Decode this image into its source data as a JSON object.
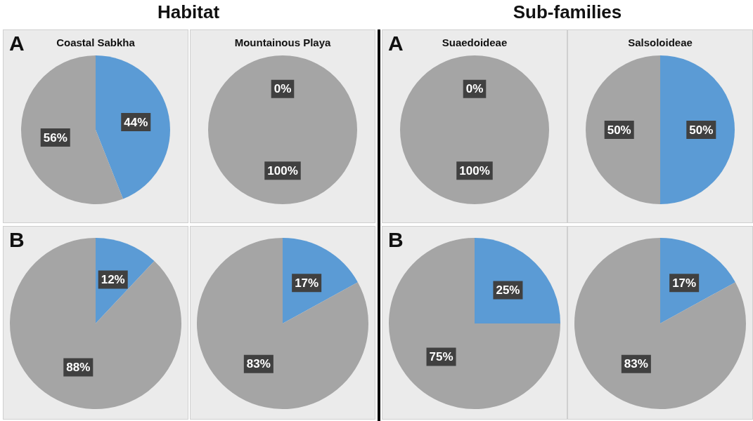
{
  "chart_data": [
    {
      "type": "pie",
      "title": "Coastal Sabkha",
      "annotations": [
        "Habitat",
        "A"
      ],
      "categories": [
        null,
        null
      ],
      "values": [
        44,
        56
      ],
      "value_labels": [
        "44%",
        "56%"
      ],
      "colors": [
        "#5b9bd5",
        "#a5a5a5"
      ]
    },
    {
      "type": "pie",
      "title": "Mountainous Playa",
      "categories": [
        null,
        null
      ],
      "values": [
        0,
        100
      ],
      "value_labels": [
        "0%",
        "100%"
      ],
      "colors": [
        "#5b9bd5",
        "#a5a5a5"
      ]
    },
    {
      "type": "pie",
      "title": "Suaedoideae",
      "annotations": [
        "Sub-families",
        "A"
      ],
      "categories": [
        null,
        null
      ],
      "values": [
        0,
        100
      ],
      "value_labels": [
        "0%",
        "100%"
      ],
      "colors": [
        "#5b9bd5",
        "#a5a5a5"
      ]
    },
    {
      "type": "pie",
      "title": "Salsoloideae",
      "categories": [
        null,
        null
      ],
      "values": [
        50,
        50
      ],
      "value_labels": [
        "50%",
        "50%"
      ],
      "colors": [
        "#5b9bd5",
        "#a5a5a5"
      ]
    },
    {
      "type": "pie",
      "annotations": [
        "B"
      ],
      "categories": [
        null,
        null
      ],
      "values": [
        12,
        88
      ],
      "value_labels": [
        "12%",
        "88%"
      ],
      "colors": [
        "#5b9bd5",
        "#a5a5a5"
      ]
    },
    {
      "type": "pie",
      "categories": [
        null,
        null
      ],
      "values": [
        17,
        83
      ],
      "value_labels": [
        "17%",
        "83%"
      ],
      "colors": [
        "#5b9bd5",
        "#a5a5a5"
      ]
    },
    {
      "type": "pie",
      "annotations": [
        "B"
      ],
      "categories": [
        null,
        null
      ],
      "values": [
        25,
        75
      ],
      "value_labels": [
        "25%",
        "75%"
      ],
      "colors": [
        "#5b9bd5",
        "#a5a5a5"
      ]
    },
    {
      "type": "pie",
      "categories": [
        null,
        null
      ],
      "values": [
        17,
        83
      ],
      "value_labels": [
        "17%",
        "83%"
      ],
      "colors": [
        "#5b9bd5",
        "#a5a5a5"
      ]
    }
  ]
}
